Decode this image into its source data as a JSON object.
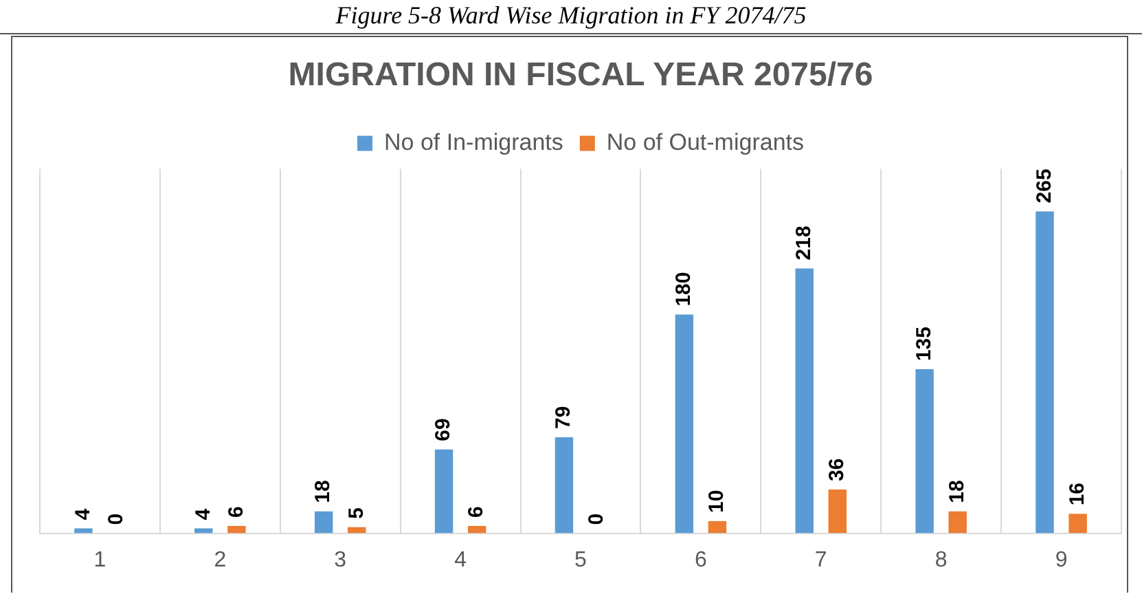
{
  "chart_data": {
    "type": "bar",
    "title": "MIGRATION IN FISCAL YEAR 2075/76",
    "annotations": [
      "Figure 5-8 Ward Wise Migration in FY 2074/75"
    ],
    "categories": [
      "1",
      "2",
      "3",
      "4",
      "5",
      "6",
      "7",
      "8",
      "9"
    ],
    "series": [
      {
        "name": "No of In-migrants",
        "color": "#5b9bd5",
        "values": [
          4,
          4,
          18,
          69,
          79,
          180,
          218,
          135,
          265
        ]
      },
      {
        "name": "No of Out-migrants",
        "color": "#ed7d31",
        "values": [
          0,
          6,
          5,
          6,
          0,
          10,
          36,
          18,
          16
        ]
      }
    ],
    "data_labels": true,
    "grid": "x",
    "legend": "top",
    "tick_labels": "x"
  }
}
